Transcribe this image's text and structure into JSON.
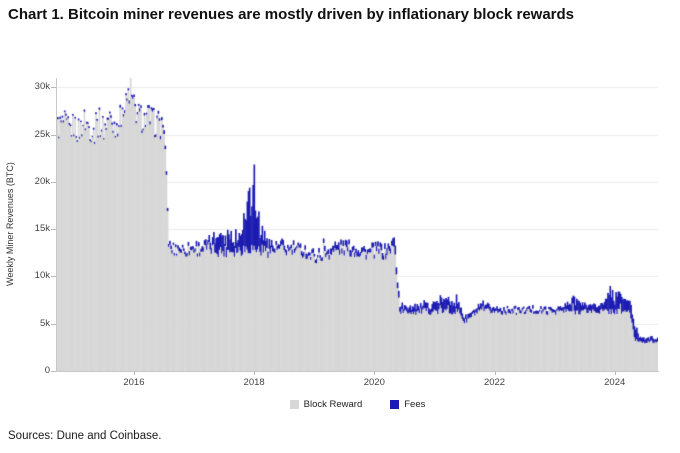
{
  "title": "Chart 1. Bitcoin miner revenues are mostly driven by inflationary block rewards",
  "sources": "Sources: Dune and Coinbase.",
  "chart_data": {
    "type": "area",
    "stacked": true,
    "title": "Chart 1. Bitcoin miner revenues are mostly driven by inflationary block rewards",
    "xlabel": "",
    "ylabel": "Weekly Miner Revenues (BTC)",
    "ylim": [
      0,
      31000
    ],
    "xlim": [
      2014.72,
      2024.72
    ],
    "grid": "horizontal",
    "legend_position": "bottom",
    "yticks": [
      {
        "v": 0,
        "label": "0"
      },
      {
        "v": 5000,
        "label": "5k"
      },
      {
        "v": 10000,
        "label": "10k"
      },
      {
        "v": 15000,
        "label": "15k"
      },
      {
        "v": 20000,
        "label": "20k"
      },
      {
        "v": 25000,
        "label": "25k"
      },
      {
        "v": 30000,
        "label": "30k"
      }
    ],
    "xticks": [
      {
        "v": 2016,
        "label": "2016"
      },
      {
        "v": 2018,
        "label": "2018"
      },
      {
        "v": 2020,
        "label": "2020"
      },
      {
        "v": 2022,
        "label": "2022"
      },
      {
        "v": 2024,
        "label": "2024"
      }
    ],
    "x": [
      2014.75,
      2014.83,
      2014.92,
      2015.0,
      2015.08,
      2015.17,
      2015.25,
      2015.33,
      2015.42,
      2015.5,
      2015.58,
      2015.67,
      2015.75,
      2015.83,
      2015.92,
      2016.0,
      2016.08,
      2016.17,
      2016.25,
      2016.33,
      2016.42,
      2016.5,
      2016.58,
      2016.67,
      2016.75,
      2016.83,
      2016.92,
      2017.0,
      2017.08,
      2017.17,
      2017.25,
      2017.33,
      2017.42,
      2017.5,
      2017.58,
      2017.67,
      2017.75,
      2017.83,
      2017.92,
      2018.0,
      2018.08,
      2018.17,
      2018.25,
      2018.33,
      2018.42,
      2018.5,
      2018.58,
      2018.67,
      2018.75,
      2018.83,
      2018.92,
      2019.0,
      2019.08,
      2019.17,
      2019.25,
      2019.33,
      2019.42,
      2019.5,
      2019.58,
      2019.67,
      2019.75,
      2019.83,
      2019.92,
      2020.0,
      2020.08,
      2020.17,
      2020.25,
      2020.33,
      2020.42,
      2020.5,
      2020.58,
      2020.67,
      2020.75,
      2020.83,
      2020.92,
      2021.0,
      2021.08,
      2021.17,
      2021.25,
      2021.33,
      2021.42,
      2021.5,
      2021.58,
      2021.67,
      2021.75,
      2021.83,
      2021.92,
      2022.0,
      2022.08,
      2022.17,
      2022.25,
      2022.33,
      2022.42,
      2022.5,
      2022.58,
      2022.67,
      2022.75,
      2022.83,
      2022.92,
      2023.0,
      2023.08,
      2023.17,
      2023.25,
      2023.33,
      2023.42,
      2023.5,
      2023.58,
      2023.67,
      2023.75,
      2023.83,
      2023.92,
      2024.0,
      2024.08,
      2024.17,
      2024.25,
      2024.33,
      2024.42,
      2024.5,
      2024.58,
      2024.67
    ],
    "series": [
      {
        "name": "Block Reward",
        "color": "#d7d7d7",
        "values": [
          25800,
          26200,
          25400,
          26000,
          25300,
          26500,
          25800,
          25200,
          26300,
          25600,
          26800,
          25900,
          26400,
          27200,
          29500,
          27800,
          26900,
          26500,
          26800,
          26200,
          26000,
          25800,
          13000,
          12800,
          12900,
          12700,
          12800,
          12900,
          12800,
          12900,
          13000,
          12900,
          12800,
          12700,
          12900,
          12800,
          12900,
          13000,
          13100,
          13000,
          12900,
          12800,
          12700,
          12800,
          12900,
          12800,
          12700,
          12800,
          12700,
          12600,
          12200,
          12000,
          12100,
          12300,
          12500,
          12700,
          12800,
          12900,
          12800,
          12700,
          12600,
          12500,
          12400,
          12600,
          12700,
          12300,
          12800,
          13200,
          6400,
          6300,
          6350,
          6300,
          6350,
          6400,
          6350,
          6400,
          6350,
          6400,
          6350,
          6400,
          6300,
          5200,
          5600,
          6100,
          6300,
          6350,
          6400,
          6350,
          6300,
          6350,
          6400,
          6350,
          6300,
          6350,
          6400,
          6350,
          6300,
          6350,
          6300,
          6350,
          6400,
          6350,
          6400,
          6350,
          6400,
          6350,
          6400,
          6350,
          6400,
          6350,
          6400,
          6350,
          6400,
          6350,
          6400,
          3400,
          3200,
          3150,
          3150,
          3150
        ]
      },
      {
        "name": "Fees",
        "color": "#1c1cb2",
        "values": [
          120,
          130,
          110,
          120,
          110,
          120,
          130,
          120,
          140,
          150,
          160,
          180,
          170,
          180,
          200,
          190,
          200,
          210,
          220,
          230,
          240,
          250,
          260,
          250,
          260,
          280,
          300,
          350,
          400,
          500,
          700,
          1000,
          1800,
          1400,
          1600,
          1500,
          1300,
          2500,
          5500,
          6200,
          2500,
          1200,
          700,
          500,
          450,
          400,
          380,
          350,
          330,
          400,
          350,
          300,
          320,
          350,
          400,
          500,
          600,
          550,
          500,
          450,
          400,
          380,
          350,
          400,
          450,
          500,
          550,
          700,
          600,
          500,
          550,
          600,
          500,
          600,
          700,
          800,
          900,
          1000,
          900,
          1100,
          900,
          400,
          350,
          350,
          400,
          450,
          400,
          300,
          280,
          260,
          250,
          240,
          230,
          220,
          230,
          240,
          250,
          260,
          240,
          250,
          300,
          500,
          600,
          1500,
          900,
          600,
          500,
          550,
          600,
          900,
          1800,
          1400,
          1600,
          1000,
          1200,
          1100,
          400,
          350,
          300,
          280
        ]
      }
    ]
  }
}
